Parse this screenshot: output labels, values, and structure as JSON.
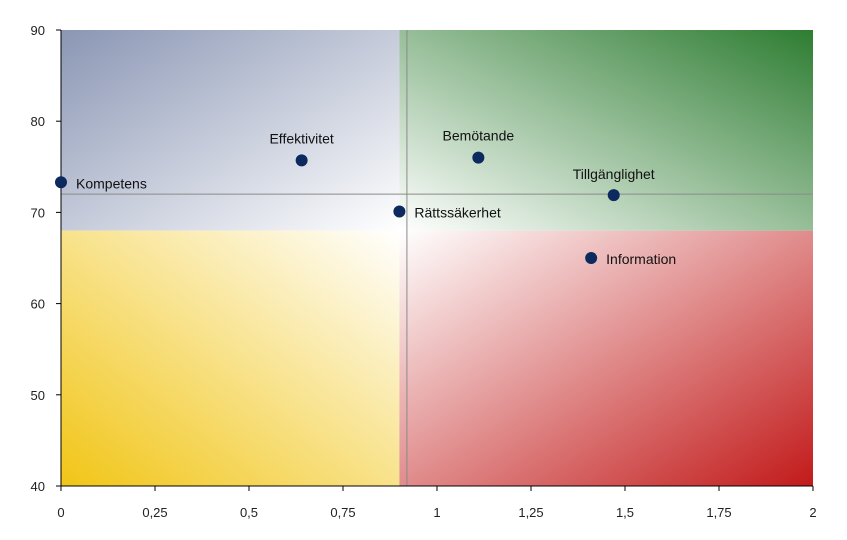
{
  "chart_data": {
    "type": "scatter",
    "title": "",
    "xlabel": "",
    "ylabel": "",
    "xlim": [
      0,
      2
    ],
    "ylim": [
      40,
      90
    ],
    "x_ticks": [
      "0",
      "0,25",
      "0,5",
      "0,75",
      "1",
      "1,25",
      "1,5",
      "1,75",
      "2"
    ],
    "y_ticks": [
      "40",
      "50",
      "60",
      "70",
      "80",
      "90"
    ],
    "crosshair": {
      "x": 0.92,
      "y": 72
    },
    "quadrant_bounds": {
      "x": 0.9,
      "y": 68
    },
    "quadrant_colors": {
      "top_left": "#8a96b4",
      "top_right": "#2e7d32",
      "bottom_left": "#f1c516",
      "bottom_right": "#c21a1a"
    },
    "marker_color": "#0d2a5e",
    "points": [
      {
        "label": "Kompetens",
        "x": 0.0,
        "y": 73.3
      },
      {
        "label": "Effektivitet",
        "x": 0.64,
        "y": 75.7
      },
      {
        "label": "Rättssäkerhet",
        "x": 0.9,
        "y": 70.1
      },
      {
        "label": "Bemötande",
        "x": 1.11,
        "y": 76.0
      },
      {
        "label": "Tillgänglighet",
        "x": 1.47,
        "y": 71.9
      },
      {
        "label": "Information",
        "x": 1.41,
        "y": 65.0
      }
    ]
  }
}
